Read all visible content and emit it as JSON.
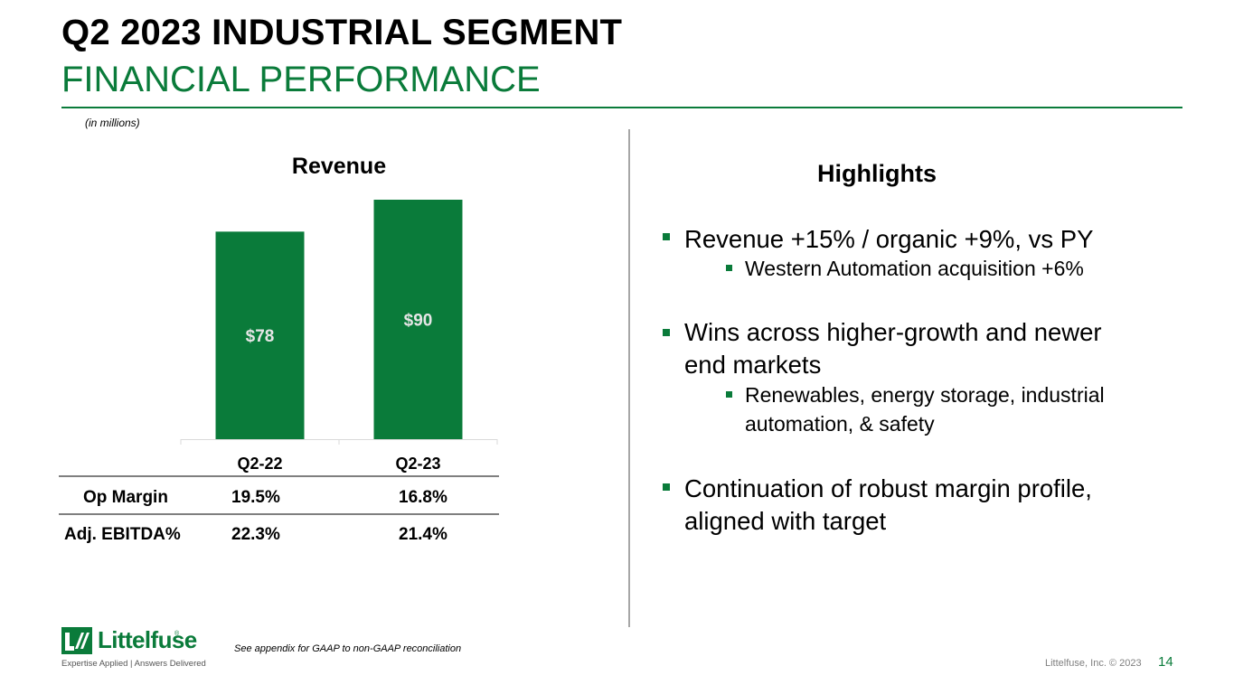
{
  "header": {
    "title": "Q2 2023 INDUSTRIAL SEGMENT",
    "subtitle": "FINANCIAL PERFORMANCE",
    "units_note": "(in millions)"
  },
  "chart_data": {
    "type": "bar",
    "title": "Revenue",
    "categories": [
      "Q2-22",
      "Q2-23"
    ],
    "values": [
      78,
      90
    ],
    "data_labels": [
      "$78",
      "$90"
    ],
    "ylim": [
      0,
      90
    ],
    "xlabel": "",
    "ylabel": "",
    "bar_color": "#0a7b3a",
    "label_color": "#e6e6e6"
  },
  "metrics_table": {
    "rows": [
      {
        "label": "Op Margin",
        "values": [
          "19.5%",
          "16.8%"
        ]
      },
      {
        "label": "Adj. EBITDA%",
        "values": [
          "22.3%",
          "21.4%"
        ]
      }
    ]
  },
  "highlights": {
    "title": "Highlights",
    "items": [
      {
        "text": "Revenue +15% / organic +9%, vs PY",
        "sub": [
          "Western Automation acquisition +6%"
        ]
      },
      {
        "text_line1": "Wins across higher-growth and newer",
        "text_line2": "end markets",
        "sub_line1": "Renewables, energy storage, industrial",
        "sub_line2": "automation, & safety"
      },
      {
        "text_line1": "Continuation of robust margin profile,",
        "text_line2": "aligned with target"
      }
    ]
  },
  "footer": {
    "footnote": "See appendix for GAAP to non-GAAP reconciliation",
    "copyright": "Littelfuse, Inc. © 2023",
    "page_number": "14",
    "logo_name": "Littelfuse",
    "logo_tagline": "Expertise Applied | Answers Delivered",
    "logo_reg": "®"
  },
  "colors": {
    "accent": "#0a7b3a",
    "divider": "#a6a6a6"
  }
}
